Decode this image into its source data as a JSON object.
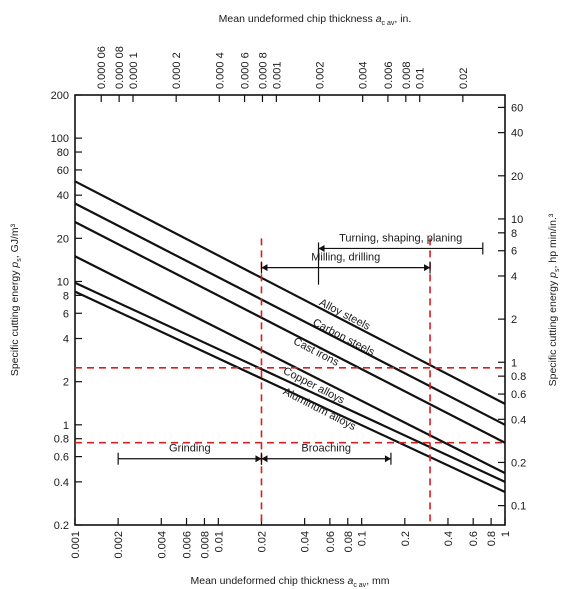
{
  "chart_data": {
    "type": "line",
    "title": "",
    "x_bottom": {
      "label": "Mean undeformed chip thickness a_cav, mm",
      "label_main": "Mean undeformed chip thickness ",
      "label_var": "a",
      "label_sub": "c av",
      "label_unit": ", mm",
      "scale": "log",
      "range": [
        0.001,
        1
      ],
      "ticks": [
        {
          "value": 0.001,
          "text": "0.001"
        },
        {
          "value": 0.002,
          "text": "0.002"
        },
        {
          "value": 0.004,
          "text": "0.004"
        },
        {
          "value": 0.006,
          "text": "0.006"
        },
        {
          "value": 0.008,
          "text": "0.008"
        },
        {
          "value": 0.01,
          "text": "0.01"
        },
        {
          "value": 0.02,
          "text": "0.02"
        },
        {
          "value": 0.04,
          "text": "0.04"
        },
        {
          "value": 0.06,
          "text": "0.06"
        },
        {
          "value": 0.08,
          "text": "0.08"
        },
        {
          "value": 0.1,
          "text": "0.1"
        },
        {
          "value": 0.2,
          "text": "0.2"
        },
        {
          "value": 0.4,
          "text": "0.4"
        },
        {
          "value": 0.6,
          "text": "0.6"
        },
        {
          "value": 0.8,
          "text": "0.8"
        },
        {
          "value": 1,
          "text": "1"
        }
      ]
    },
    "x_top": {
      "label": "Mean undeformed chip thickness a_cav, in.",
      "label_main": "Mean undeformed chip thickness ",
      "label_var": "a",
      "label_sub": "c av",
      "label_unit": ", in.",
      "scale": "log",
      "ticks": [
        {
          "value": 6e-05,
          "text": "0.000 06"
        },
        {
          "value": 8e-05,
          "text": "0.000 08"
        },
        {
          "value": 0.0001,
          "text": "0.000 1"
        },
        {
          "value": 0.0002,
          "text": "0.000 2"
        },
        {
          "value": 0.0004,
          "text": "0.000 4"
        },
        {
          "value": 0.0006,
          "text": "0.000 6"
        },
        {
          "value": 0.0008,
          "text": "0.000 8"
        },
        {
          "value": 0.001,
          "text": "0.001"
        },
        {
          "value": 0.002,
          "text": "0.002"
        },
        {
          "value": 0.004,
          "text": "0.004"
        },
        {
          "value": 0.006,
          "text": "0.006"
        },
        {
          "value": 0.008,
          "text": "0.008"
        },
        {
          "value": 0.01,
          "text": "0.01"
        },
        {
          "value": 0.02,
          "text": "0.02"
        }
      ]
    },
    "y_left": {
      "label": "Specific cutting energy p_s, GJ/m³",
      "label_main": "Specific cutting energy ",
      "label_var": "p",
      "label_sub": "s",
      "label_unit": ", GJ/m³",
      "scale": "log",
      "range": [
        0.2,
        200
      ],
      "ticks": [
        {
          "value": 0.2,
          "text": "0.2"
        },
        {
          "value": 0.4,
          "text": "0.4"
        },
        {
          "value": 0.6,
          "text": "0.6"
        },
        {
          "value": 0.8,
          "text": "0.8"
        },
        {
          "value": 1,
          "text": "1"
        },
        {
          "value": 2,
          "text": "2"
        },
        {
          "value": 4,
          "text": "4"
        },
        {
          "value": 6,
          "text": "6"
        },
        {
          "value": 8,
          "text": "8"
        },
        {
          "value": 10,
          "text": "10"
        },
        {
          "value": 20,
          "text": "20"
        },
        {
          "value": 40,
          "text": "40"
        },
        {
          "value": 60,
          "text": "60"
        },
        {
          "value": 80,
          "text": "80"
        },
        {
          "value": 100,
          "text": "100"
        },
        {
          "value": 200,
          "text": "200"
        }
      ]
    },
    "y_right": {
      "label": "Specific cutting energy p_s, hp min/in.³",
      "label_main": "Specific cutting energy ",
      "label_var": "p",
      "label_sub": "s",
      "label_unit": ", hp min/in.³",
      "scale": "log",
      "ticks": [
        {
          "value": 0.1,
          "text": "0.1"
        },
        {
          "value": 0.2,
          "text": "0.2"
        },
        {
          "value": 0.4,
          "text": "0.4"
        },
        {
          "value": 0.6,
          "text": "0.6"
        },
        {
          "value": 0.8,
          "text": "0.8"
        },
        {
          "value": 1,
          "text": "1"
        },
        {
          "value": 2,
          "text": "2"
        },
        {
          "value": 4,
          "text": "4"
        },
        {
          "value": 6,
          "text": "6"
        },
        {
          "value": 8,
          "text": "8"
        },
        {
          "value": 10,
          "text": "10"
        },
        {
          "value": 20,
          "text": "20"
        },
        {
          "value": 40,
          "text": "40"
        },
        {
          "value": 60,
          "text": "60"
        }
      ]
    },
    "series": [
      {
        "name": "Alloy steels",
        "x": [
          0.001,
          1
        ],
        "y": [
          50,
          1.4
        ]
      },
      {
        "name": "Carbon steels",
        "x": [
          0.001,
          1
        ],
        "y": [
          35,
          1.0
        ]
      },
      {
        "name": "Cast irons",
        "x": [
          0.001,
          1
        ],
        "y": [
          26,
          0.75
        ]
      },
      {
        "name": "Copper alloys",
        "x": [
          0.001,
          1
        ],
        "y": [
          15,
          0.46
        ]
      },
      {
        "name": "Aluminum alloys",
        "x": [
          0.001,
          1
        ],
        "y": [
          9.8,
          0.4
        ]
      },
      {
        "name": "",
        "x": [
          0.001,
          1
        ],
        "y": [
          8.5,
          0.34
        ]
      }
    ],
    "material_labels": [
      {
        "text": "Alloy steels",
        "x": 0.05,
        "y": 6.9
      },
      {
        "text": "Carbon steels",
        "x": 0.045,
        "y": 5.0
      },
      {
        "text": "Cast irons",
        "x": 0.033,
        "y": 3.7
      },
      {
        "text": "Copper alloys",
        "x": 0.028,
        "y": 2.3
      },
      {
        "text": "Aluminum alloys",
        "x": 0.028,
        "y": 1.65
      }
    ],
    "operation_ranges": [
      {
        "label": "Turning, shaping, planing",
        "x_start": 0.05,
        "x_end": 0.7,
        "y": 17,
        "tail_to_y": 9.5,
        "arrow": "start"
      },
      {
        "label": "Milling, drilling",
        "x_start": 0.02,
        "x_end": 0.3,
        "y": 12.5,
        "arrow": "both"
      },
      {
        "label": "Grinding",
        "x_start": 0.002,
        "x_end": 0.02,
        "y": 0.58,
        "arrow": "end"
      },
      {
        "label": "Broaching",
        "x_start": 0.02,
        "x_end": 0.16,
        "y": 0.58,
        "arrow": "both"
      }
    ],
    "reference_lines": {
      "color": "#d42020",
      "vertical_x": [
        0.02,
        0.3
      ],
      "horizontal_y": [
        2.5,
        0.75
      ]
    },
    "grid": false,
    "legend": "none"
  }
}
